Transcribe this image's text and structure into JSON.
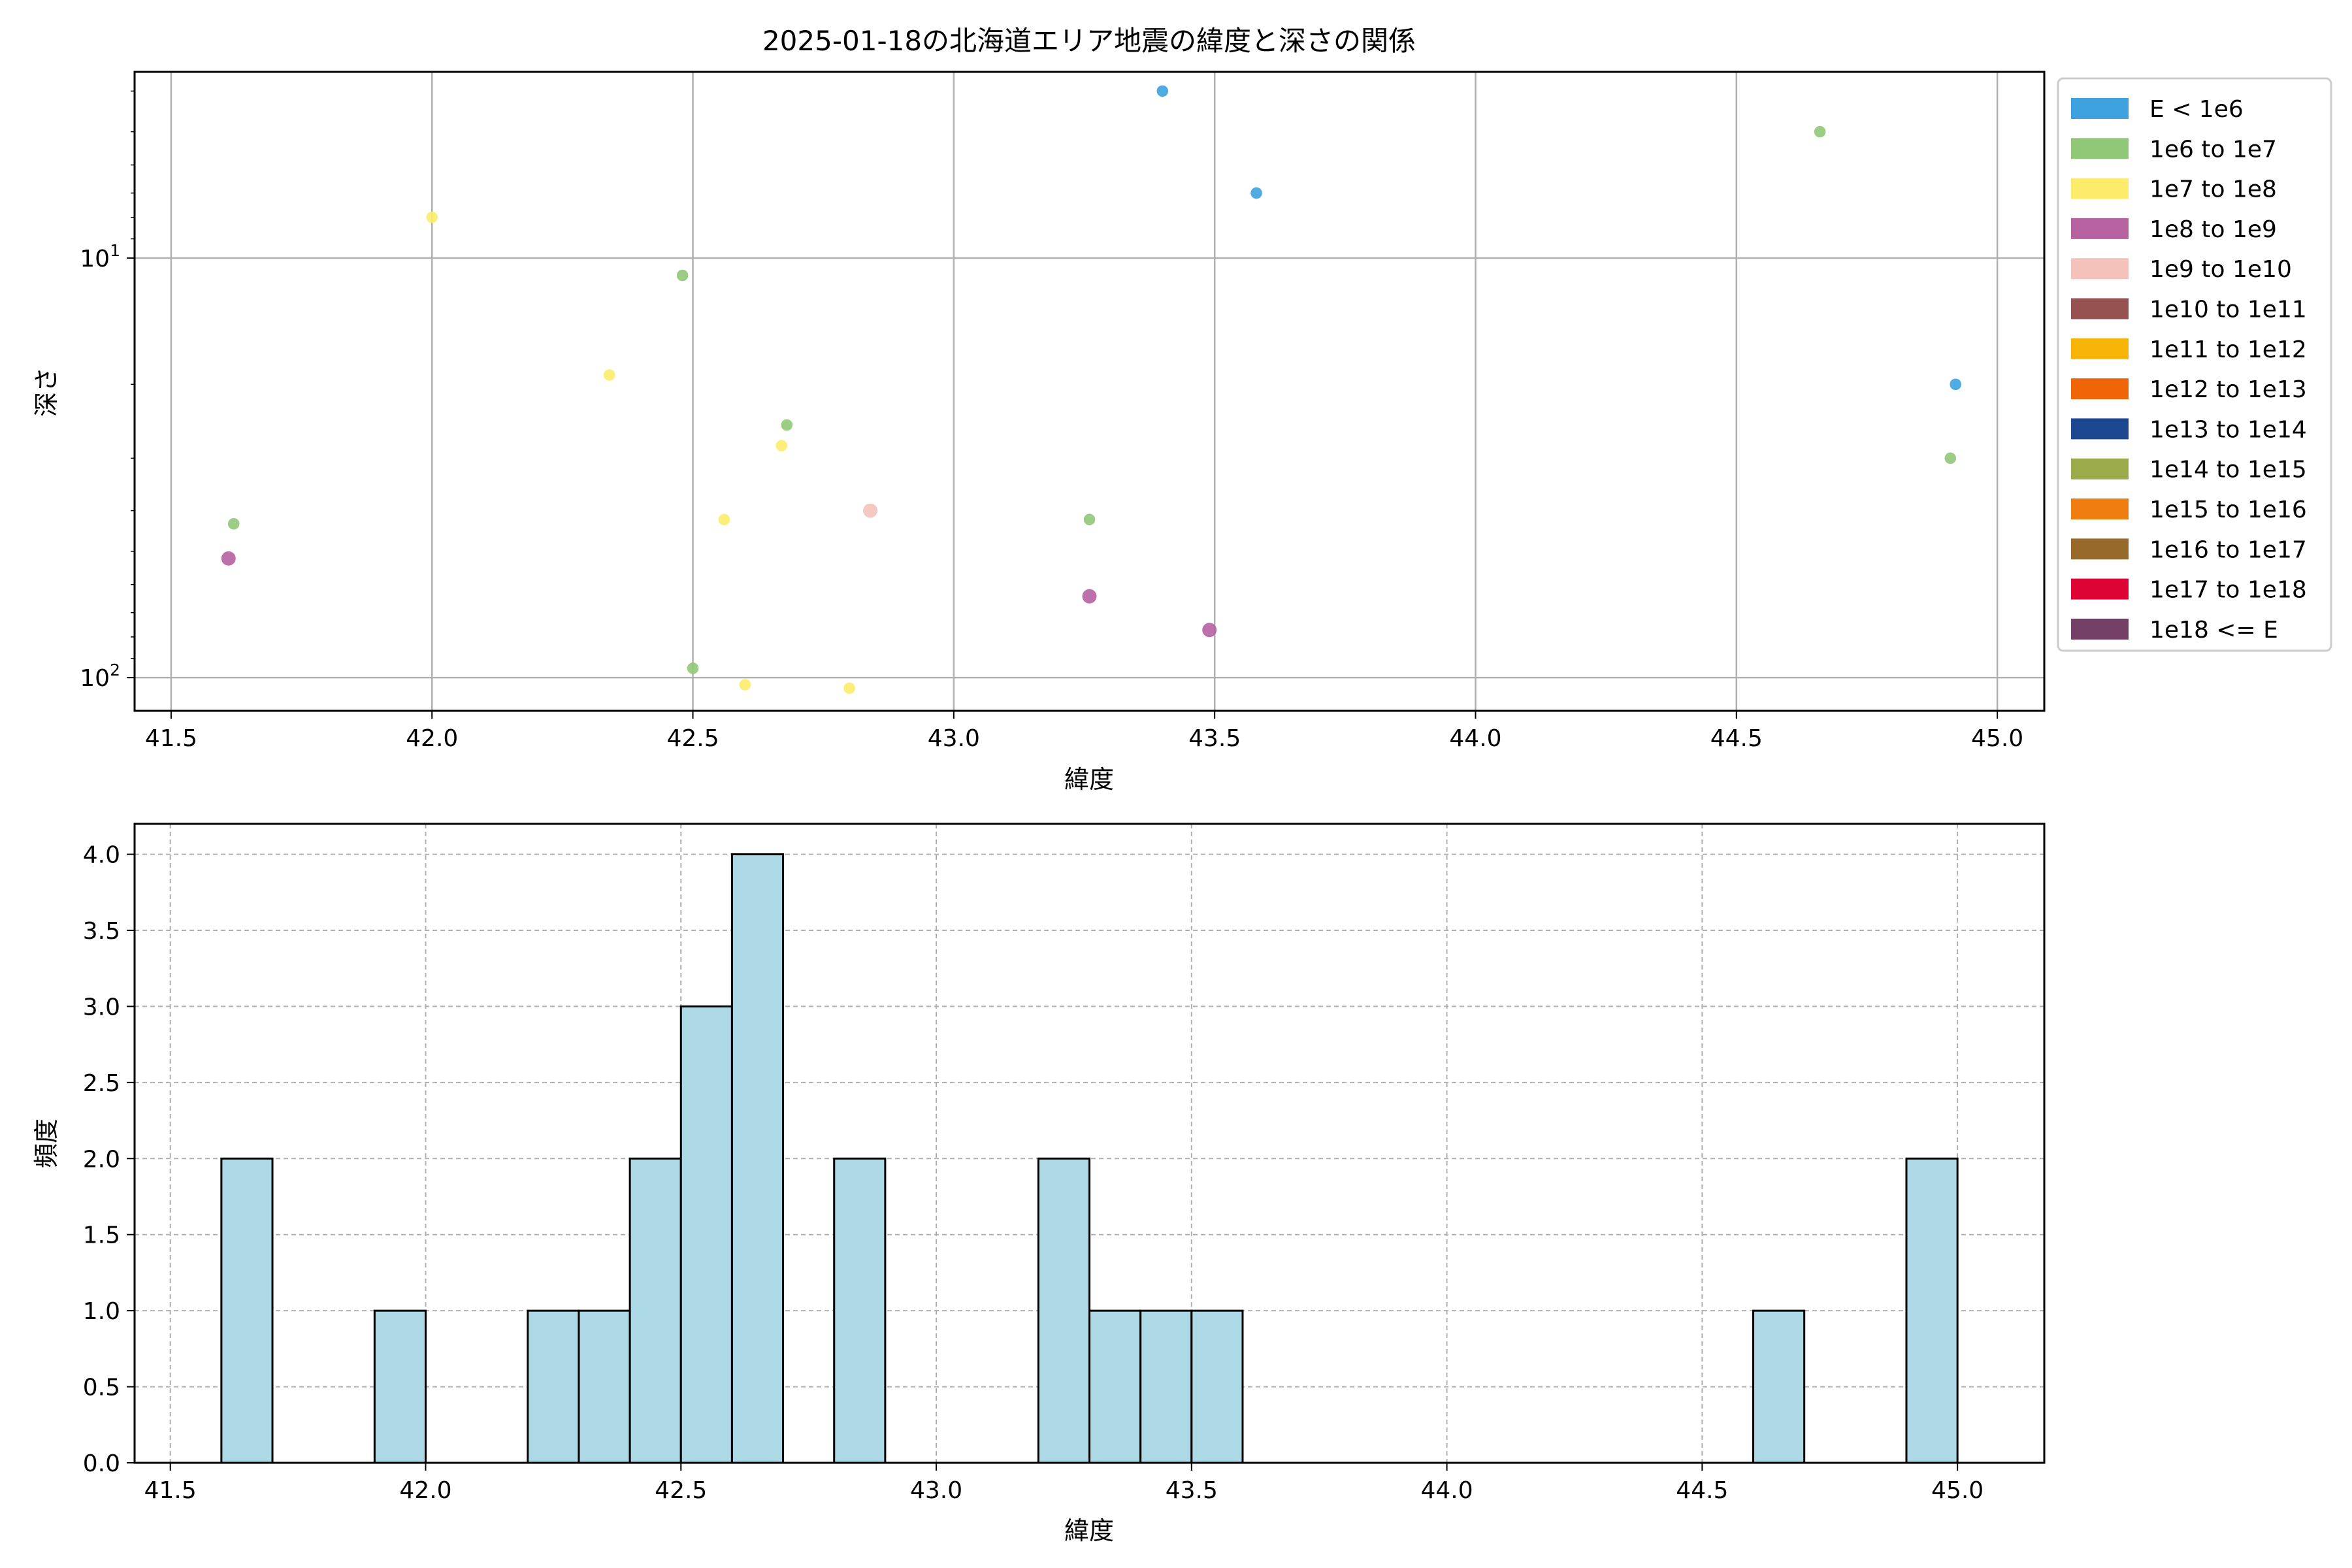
{
  "chart_data": [
    {
      "type": "scatter",
      "title": "2025-01-18の北海道エリア地震の緯度と深さの関係",
      "xlabel": "緯度",
      "ylabel": "深さ",
      "xlim": [
        41.43,
        45.09
      ],
      "ylim": [
        120,
        3.6
      ],
      "y_scale": "log",
      "y_inverted": true,
      "x_ticks": [
        "41.5",
        "42.0",
        "42.5",
        "43.0",
        "43.5",
        "44.0",
        "44.5",
        "45.0"
      ],
      "x_tick_values": [
        41.5,
        42.0,
        42.5,
        43.0,
        43.5,
        44.0,
        44.5,
        45.0
      ],
      "y_ticks": [
        {
          "value": 10,
          "base": "10",
          "exp": "1"
        },
        {
          "value": 100,
          "base": "10",
          "exp": "2"
        }
      ],
      "grid": true,
      "legend": {
        "placement": "outside-right-top",
        "entries": [
          {
            "label": "E < 1e6",
            "color": "#3da2dd"
          },
          {
            "label": "1e6 to 1e7",
            "color": "#90c878"
          },
          {
            "label": "1e7 to 1e8",
            "color": "#fdec6a"
          },
          {
            "label": "1e8 to 1e9",
            "color": "#b662a1"
          },
          {
            "label": "1e9 to 1e10",
            "color": "#f5c2bb"
          },
          {
            "label": "1e10 to 1e11",
            "color": "#955250"
          },
          {
            "label": "1e11 to 1e12",
            "color": "#f6b506"
          },
          {
            "label": "1e12 to 1e13",
            "color": "#ef6508"
          },
          {
            "label": "1e13 to 1e14",
            "color": "#1c4791"
          },
          {
            "label": "1e14 to 1e15",
            "color": "#9bab4c"
          },
          {
            "label": "1e15 to 1e16",
            "color": "#ef7d10"
          },
          {
            "label": "1e16 to 1e17",
            "color": "#976a2c"
          },
          {
            "label": "1e17 to 1e18",
            "color": "#dd0334"
          },
          {
            "label": "1e18 <= E",
            "color": "#744068"
          }
        ]
      },
      "points": [
        {
          "x": 43.4,
          "y": 4.0,
          "c": 0,
          "s": 4
        },
        {
          "x": 43.58,
          "y": 7.0,
          "c": 0,
          "s": 4
        },
        {
          "x": 44.92,
          "y": 20.0,
          "c": 0,
          "s": 4
        },
        {
          "x": 44.66,
          "y": 5.0,
          "c": 1,
          "s": 4
        },
        {
          "x": 42.48,
          "y": 11.0,
          "c": 1,
          "s": 4
        },
        {
          "x": 42.68,
          "y": 25.0,
          "c": 1,
          "s": 4
        },
        {
          "x": 44.91,
          "y": 30.0,
          "c": 1,
          "s": 4
        },
        {
          "x": 41.62,
          "y": 43.0,
          "c": 1,
          "s": 4
        },
        {
          "x": 43.26,
          "y": 42.0,
          "c": 1,
          "s": 4
        },
        {
          "x": 42.5,
          "y": 95.0,
          "c": 1,
          "s": 4
        },
        {
          "x": 42.0,
          "y": 8.0,
          "c": 2,
          "s": 4
        },
        {
          "x": 42.34,
          "y": 19.0,
          "c": 2,
          "s": 4
        },
        {
          "x": 42.67,
          "y": 28.0,
          "c": 2,
          "s": 4
        },
        {
          "x": 42.56,
          "y": 42.0,
          "c": 2,
          "s": 4
        },
        {
          "x": 42.6,
          "y": 104.0,
          "c": 2,
          "s": 4
        },
        {
          "x": 42.8,
          "y": 106.0,
          "c": 2,
          "s": 4
        },
        {
          "x": 41.61,
          "y": 52.0,
          "c": 3,
          "s": 5
        },
        {
          "x": 43.26,
          "y": 64.0,
          "c": 3,
          "s": 5
        },
        {
          "x": 43.49,
          "y": 77.0,
          "c": 3,
          "s": 5
        },
        {
          "x": 42.84,
          "y": 40.0,
          "c": 4,
          "s": 5
        }
      ]
    },
    {
      "type": "bar",
      "subtype": "histogram",
      "xlabel": "緯度",
      "ylabel": "頻度",
      "xlim": [
        41.43,
        45.17
      ],
      "ylim": [
        0,
        4.2
      ],
      "x_ticks": [
        "41.5",
        "42.0",
        "42.5",
        "43.0",
        "43.5",
        "44.0",
        "44.5",
        "45.0"
      ],
      "x_tick_values": [
        41.5,
        42.0,
        42.5,
        43.0,
        43.5,
        44.0,
        44.5,
        45.0
      ],
      "y_ticks": [
        "0.0",
        "0.5",
        "1.0",
        "1.5",
        "2.0",
        "2.5",
        "3.0",
        "3.5",
        "4.0"
      ],
      "y_tick_values": [
        0,
        0.5,
        1.0,
        1.5,
        2.0,
        2.5,
        3.0,
        3.5,
        4.0
      ],
      "grid": true,
      "bar_color": "#add8e6",
      "bins": [
        {
          "start": 41.6,
          "end": 41.7,
          "count": 2
        },
        {
          "start": 41.9,
          "end": 42.0,
          "count": 1
        },
        {
          "start": 42.2,
          "end": 42.3,
          "count": 1
        },
        {
          "start": 42.3,
          "end": 42.4,
          "count": 1
        },
        {
          "start": 42.4,
          "end": 42.5,
          "count": 2
        },
        {
          "start": 42.5,
          "end": 42.6,
          "count": 3
        },
        {
          "start": 42.6,
          "end": 42.7,
          "count": 4
        },
        {
          "start": 42.8,
          "end": 42.9,
          "count": 2
        },
        {
          "start": 43.2,
          "end": 43.3,
          "count": 2
        },
        {
          "start": 43.3,
          "end": 43.4,
          "count": 1
        },
        {
          "start": 43.4,
          "end": 43.5,
          "count": 1
        },
        {
          "start": 43.5,
          "end": 43.6,
          "count": 1
        },
        {
          "start": 44.6,
          "end": 44.7,
          "count": 1
        },
        {
          "start": 44.9,
          "end": 45.0,
          "count": 2
        }
      ]
    }
  ]
}
